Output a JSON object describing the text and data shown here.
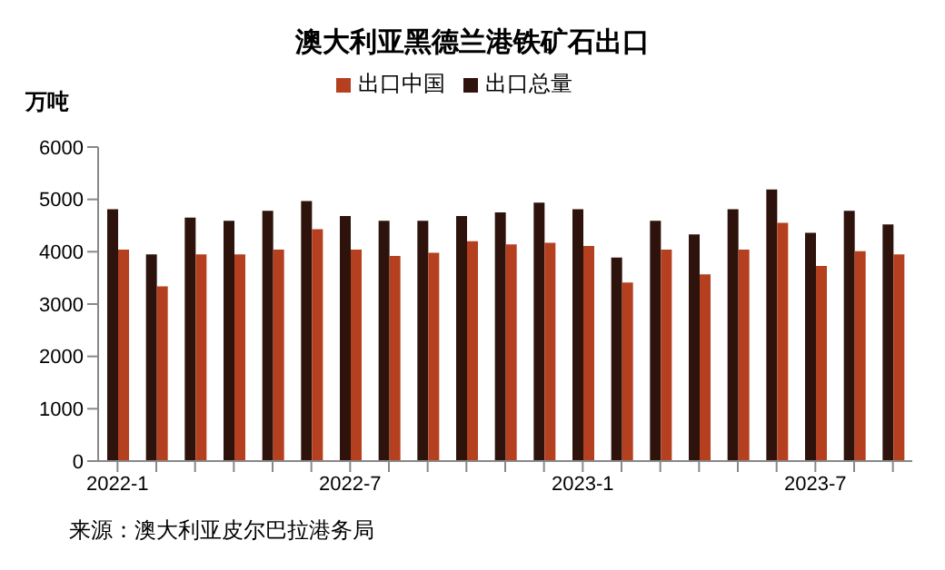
{
  "chart_data": {
    "type": "bar",
    "title": "澳大利亚黑德兰港铁矿石出口",
    "ylabel": "万吨",
    "categories": [
      "2022-1",
      null,
      null,
      null,
      null,
      null,
      "2022-7",
      null,
      null,
      null,
      null,
      null,
      "2023-1",
      null,
      null,
      null,
      null,
      null,
      "2023-7",
      null,
      null
    ],
    "series": [
      {
        "name": "出口总量",
        "color": "#2e130c",
        "values": [
          4810,
          3950,
          4650,
          4590,
          4780,
          4970,
          4680,
          4590,
          4590,
          4680,
          4750,
          4940,
          4810,
          3890,
          4590,
          4330,
          4810,
          5190,
          4360,
          4780,
          4520
        ]
      },
      {
        "name": "出口中国",
        "color": "#b5401f",
        "values": [
          4040,
          3340,
          3950,
          3950,
          4040,
          4430,
          4040,
          3920,
          3980,
          4200,
          4140,
          4170,
          4110,
          3410,
          4040,
          3570,
          4040,
          4550,
          3730,
          4010,
          3950
        ]
      }
    ],
    "ylim": [
      0,
      6000
    ],
    "yticks": [
      0,
      1000,
      2000,
      3000,
      4000,
      5000,
      6000
    ],
    "grid": false,
    "legend": "top",
    "annotations": [
      "来源：澳大利亚皮尔巴拉港务局"
    ]
  }
}
